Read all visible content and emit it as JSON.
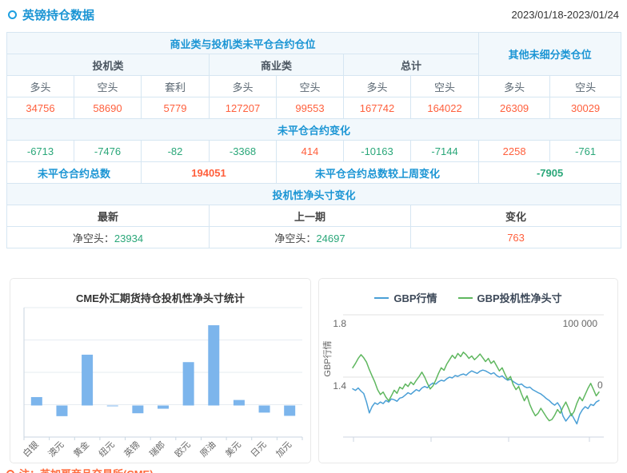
{
  "header": {
    "title": "英镑持仓数据",
    "date_range": "2023/01/18-2023/01/24"
  },
  "colors": {
    "accent_blue": "#1b95d4",
    "value_orange": "#ff5f3c",
    "value_green": "#2aa779",
    "bar_fill": "#7cb5ec",
    "line_blue": "#4a9fd6",
    "line_green": "#5fb75f"
  },
  "table": {
    "h1_main": "商业类与投机类未平仓合约仓位",
    "h1_other": "其他未细分类仓位",
    "h2": [
      "投机类",
      "商业类",
      "总计"
    ],
    "h3": [
      "多头",
      "空头",
      "套利",
      "多头",
      "空头",
      "多头",
      "空头",
      "多头",
      "空头"
    ],
    "positions": [
      "34756",
      "58690",
      "5779",
      "127207",
      "99553",
      "167742",
      "164022",
      "26309",
      "30029"
    ],
    "change_header": "未平仓合约变化",
    "changes": [
      "-6713",
      "-7476",
      "-82",
      "-3368",
      "414",
      "-10163",
      "-7144",
      "2258",
      "-761"
    ],
    "total_label": "未平仓合约总数",
    "total_value": "194051",
    "total_change_label": "未平仓合约总数较上周变化",
    "total_change_value": "-7905",
    "net_header": "投机性净头寸变化",
    "net_cols": [
      "最新",
      "上一期",
      "变化"
    ],
    "net_latest_label": "净空头：",
    "net_latest_value": "23934",
    "net_prev_label": "净空头：",
    "net_prev_value": "24697",
    "net_change_value": "763"
  },
  "chart_data": [
    {
      "type": "bar",
      "title": "CME外汇期货持仓投机性净头寸统计",
      "categories": [
        "白银",
        "澳元",
        "黄金",
        "纽元",
        "英镑",
        "瑞郎",
        "欧元",
        "原油",
        "美元",
        "日元",
        "加元"
      ],
      "values": [
        26000,
        -33000,
        157000,
        -1500,
        -24000,
        -10000,
        134000,
        248000,
        17000,
        -22000,
        -32000
      ],
      "ylim": [
        -100000,
        300000
      ],
      "grid_interval": 100000,
      "xlabel": "",
      "ylabel": "",
      "legend_position": "none",
      "grid": true
    },
    {
      "type": "line",
      "title": "",
      "ylabel_left": "GBP行情",
      "left_axis_ticks": [
        "1.8",
        "1.4"
      ],
      "right_axis_ticks": [
        "100 000",
        "0"
      ],
      "left_axis_range": [
        1.0,
        1.8
      ],
      "right_axis_range": [
        -96000,
        196000
      ],
      "legend_position": "top",
      "grid": true,
      "series": [
        {
          "name": "GBP行情",
          "color": "#4a9fd6",
          "axis": "left",
          "values": [
            1.325,
            1.315,
            1.33,
            1.31,
            1.295,
            1.24,
            1.17,
            1.21,
            1.235,
            1.225,
            1.24,
            1.23,
            1.25,
            1.24,
            1.26,
            1.255,
            1.245,
            1.265,
            1.27,
            1.285,
            1.3,
            1.29,
            1.305,
            1.32,
            1.31,
            1.33,
            1.34,
            1.332,
            1.35,
            1.362,
            1.355,
            1.37,
            1.38,
            1.375,
            1.39,
            1.4,
            1.395,
            1.41,
            1.405,
            1.415,
            1.42,
            1.412,
            1.428,
            1.44,
            1.432,
            1.424,
            1.438,
            1.445,
            1.44,
            1.43,
            1.42,
            1.428,
            1.41,
            1.4,
            1.408,
            1.392,
            1.38,
            1.386,
            1.372,
            1.36,
            1.35,
            1.356,
            1.34,
            1.332,
            1.336,
            1.32,
            1.31,
            1.3,
            1.292,
            1.278,
            1.262,
            1.25,
            1.232,
            1.22,
            1.236,
            1.208,
            1.15,
            1.118,
            1.14,
            1.165,
            1.132,
            1.1,
            1.16,
            1.19,
            1.21,
            1.198,
            1.225,
            1.218,
            1.24,
            1.25
          ]
        },
        {
          "name": "GBP投机性净头寸",
          "color": "#5fb75f",
          "axis": "right",
          "values": [
            15000,
            22000,
            30000,
            36000,
            31000,
            24000,
            12000,
            2000,
            -8000,
            -20000,
            -28000,
            -24000,
            -32000,
            -38000,
            -30000,
            -21000,
            -26000,
            -16000,
            -19000,
            -11000,
            -15000,
            -8000,
            -12000,
            -5000,
            1000,
            8000,
            0,
            -10000,
            -19000,
            -14000,
            -5000,
            6000,
            15000,
            11000,
            21000,
            28000,
            35000,
            30000,
            38000,
            33000,
            40000,
            36000,
            30000,
            34000,
            28000,
            32000,
            37000,
            31000,
            25000,
            30000,
            22000,
            26000,
            18000,
            10000,
            15000,
            5000,
            -4000,
            1000,
            -12000,
            -20000,
            -15000,
            -27000,
            -38000,
            -30000,
            -44000,
            -54000,
            -62000,
            -58000,
            -50000,
            -57000,
            -64000,
            -70000,
            -68000,
            -61000,
            -52000,
            -58000,
            -48000,
            -40000,
            -50000,
            -62000,
            -55000,
            -42000,
            -32000,
            -38000,
            -28000,
            -18000,
            -10000,
            -20000,
            -30000,
            -24000
          ]
        }
      ]
    }
  ],
  "footer": {
    "note": "注：芝加哥商品交易所(CME)"
  }
}
